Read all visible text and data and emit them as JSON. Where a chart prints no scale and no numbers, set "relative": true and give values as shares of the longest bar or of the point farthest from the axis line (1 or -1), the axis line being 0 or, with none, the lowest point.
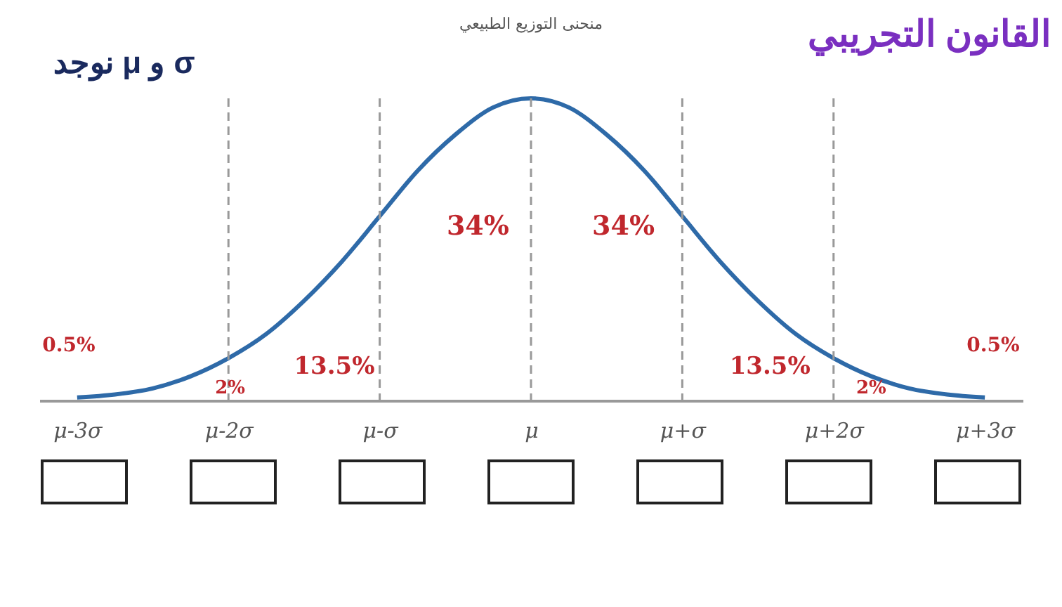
{
  "chart_data": {
    "type": "line",
    "title": "القانون التجريبي",
    "subtitle": "نوجد μ و σ",
    "categories": [
      "μ-3σ",
      null,
      null,
      null,
      "μ-2σ",
      null,
      null,
      null,
      "μ-σ",
      null,
      null,
      null,
      "μ",
      null,
      null,
      null,
      "μ+σ",
      null,
      null,
      null,
      "μ+2σ",
      null,
      null,
      null,
      "μ+3σ"
    ],
    "series": [
      {
        "color": "#2e6aa8",
        "values": [
          0.01,
          0.02,
          0.04,
          0.08,
          0.14,
          0.22,
          0.33,
          0.46,
          0.61,
          0.76,
          0.88,
          0.97,
          1,
          0.97,
          0.88,
          0.76,
          0.61,
          0.46,
          0.33,
          0.22,
          0.14,
          0.08,
          0.04,
          0.02,
          0.01
        ]
      }
    ],
    "relative": true,
    "ref_lines": [
      {
        "axis": "x",
        "value": "μ-2σ",
        "line_style": "dashed",
        "color": "#999999"
      },
      {
        "axis": "x",
        "value": "μ-σ",
        "line_style": "dashed",
        "color": "#999999"
      },
      {
        "axis": "x",
        "value": "μ",
        "line_style": "dashed",
        "color": "#999999"
      },
      {
        "axis": "x",
        "value": "μ+σ",
        "line_style": "dashed",
        "color": "#999999"
      },
      {
        "axis": "x",
        "value": "μ+2σ",
        "line_style": "dashed",
        "color": "#999999"
      }
    ],
    "annotations": [
      "منحنى التوزيع الطبيعي",
      "34%",
      "34%",
      "13.5%",
      "13.5%",
      "2%",
      "2%",
      "0.5%",
      "0.5%"
    ],
    "marker": "none",
    "line_style": "solid"
  }
}
